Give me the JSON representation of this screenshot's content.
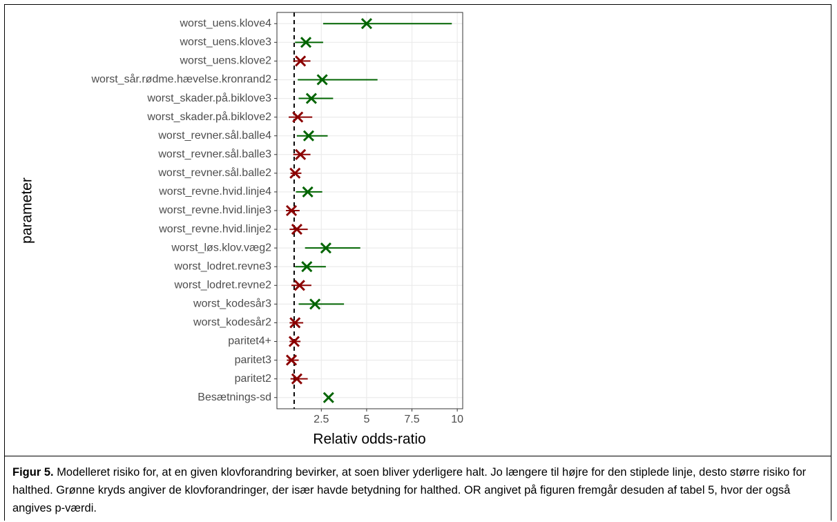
{
  "chart_data": {
    "type": "forest",
    "x_label": "Relativ odds-ratio",
    "y_label": "parameter",
    "categories": [
      "worst_uens.klove4",
      "worst_uens.klove3",
      "worst_uens.klove2",
      "worst_sår.rødme.hævelse.kronrand2",
      "worst_skader.på.biklove3",
      "worst_skader.på.biklove2",
      "worst_revner.sål.balle4",
      "worst_revner.sål.balle3",
      "worst_revner.sål.balle2",
      "worst_revne.hvid.linje4",
      "worst_revne.hvid.linje3",
      "worst_revne.hvid.linje2",
      "worst_løs.klov.væg2",
      "worst_lodret.revne3",
      "worst_lodret.revne2",
      "worst_kodesår3",
      "worst_kodesår2",
      "paritet4+",
      "paritet3",
      "paritet2",
      "Besætnings-sd"
    ],
    "values": [
      5.0,
      1.65,
      1.35,
      2.55,
      1.95,
      1.2,
      1.8,
      1.35,
      1.05,
      1.75,
      0.85,
      1.15,
      2.75,
      1.7,
      1.3,
      2.15,
      1.05,
      1.0,
      0.85,
      1.15,
      2.9
    ],
    "lower": [
      2.6,
      1.05,
      0.95,
      1.2,
      1.25,
      0.7,
      1.15,
      0.95,
      0.8,
      1.1,
      0.55,
      0.75,
      1.6,
      1.05,
      0.85,
      1.25,
      0.75,
      0.75,
      0.6,
      0.8,
      null
    ],
    "upper": [
      9.7,
      2.6,
      1.9,
      5.6,
      3.15,
      2.0,
      2.85,
      1.9,
      1.4,
      2.55,
      1.3,
      1.75,
      4.65,
      2.75,
      1.95,
      3.75,
      1.5,
      1.35,
      1.25,
      1.75,
      null
    ],
    "colors": [
      "#006400",
      "#006400",
      "#8b0000",
      "#006400",
      "#006400",
      "#8b0000",
      "#006400",
      "#8b0000",
      "#8b0000",
      "#006400",
      "#8b0000",
      "#8b0000",
      "#006400",
      "#006400",
      "#8b0000",
      "#006400",
      "#8b0000",
      "#8b0000",
      "#8b0000",
      "#8b0000",
      "#006400"
    ],
    "xlim": [
      0.05,
      10.3
    ],
    "xticks": [
      2.5,
      5.0,
      7.5,
      10.0
    ],
    "reference_line": 1,
    "grid": true
  },
  "caption": {
    "label": "Figur 5.",
    "text": "Modelleret risiko for, at en given klovforandring bevirker, at soen bliver yderligere halt. Jo længere til højre for den stiplede linje, desto større risiko for halthed. Grønne kryds angiver de klovforandringer, der især havde betydning for halthed. OR angivet på figuren fremgår desuden af tabel 5, hvor der også angives p-værdi."
  }
}
